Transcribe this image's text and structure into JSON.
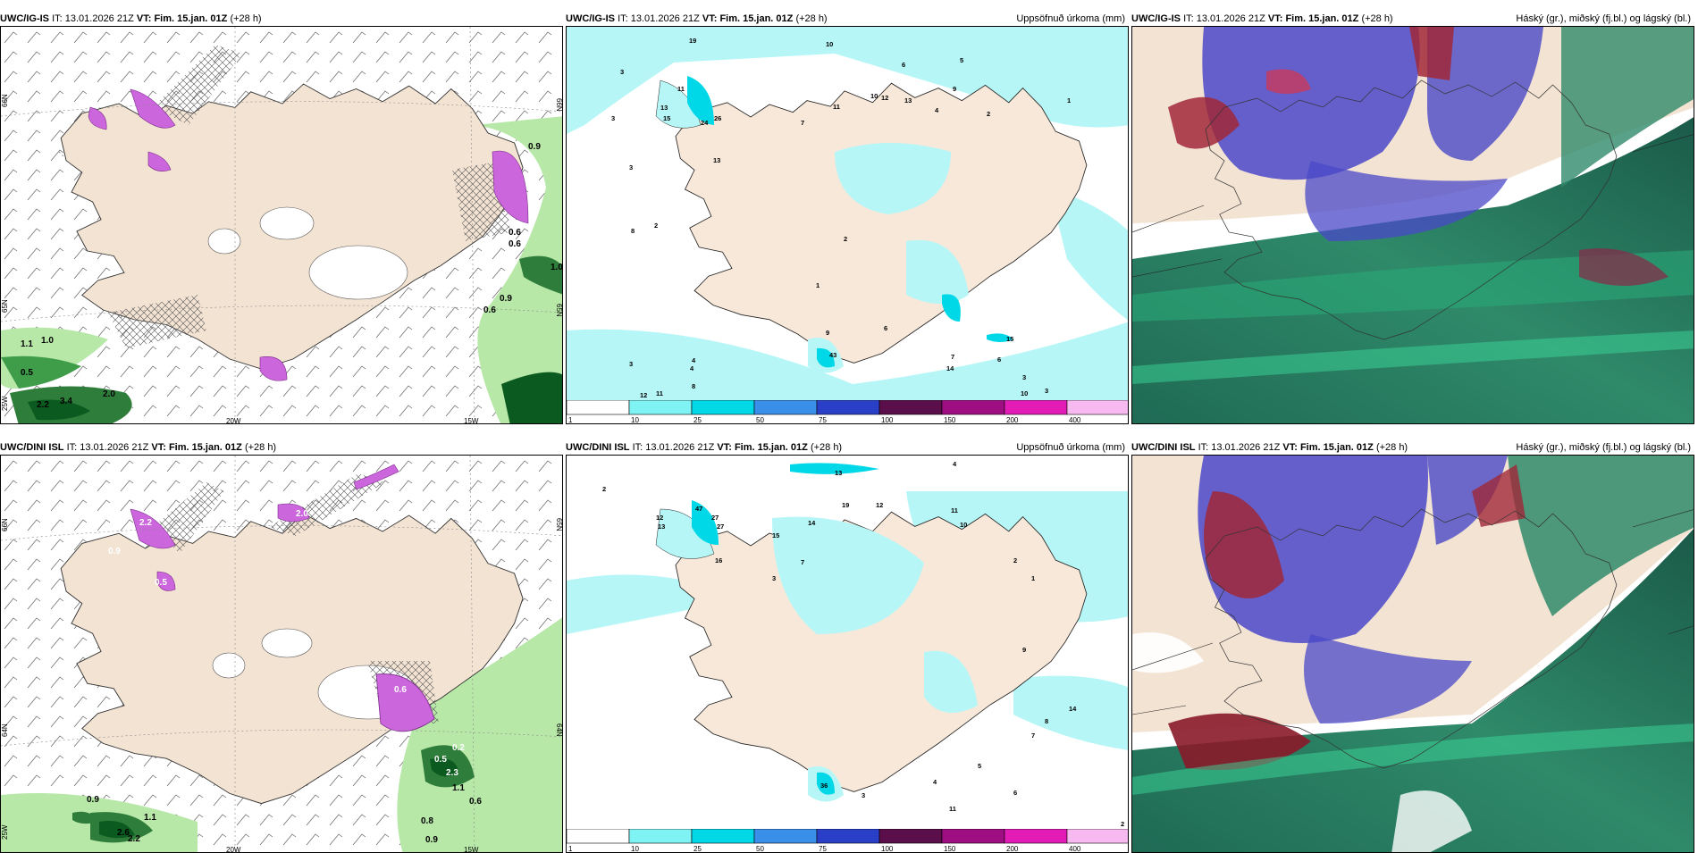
{
  "panels": [
    {
      "id": "tl",
      "model": "UWC/IG-IS",
      "it_label": "IT:",
      "it_value": "13.01.2026 21Z",
      "vt_label": "VT:",
      "vt_value": "Fim. 15.jan. 01Z",
      "lead": "(+28 h)",
      "title": "",
      "axis_labels": [
        "66N",
        "65N",
        "64N",
        "25W",
        "20W",
        "15W",
        "66N",
        "65N"
      ],
      "values": [
        "0.9",
        "0.6",
        "0.6",
        "0.9",
        "0.6",
        "1.0",
        "1.0",
        "0.5",
        "3.4",
        "2.2",
        "2.0",
        "1.1"
      ]
    },
    {
      "id": "tm",
      "model": "UWC/IG-IS",
      "it_label": "IT:",
      "it_value": "13.01.2026 21Z",
      "vt_label": "VT:",
      "vt_value": "Fim. 15.jan. 01Z",
      "lead": "(+28 h)",
      "title": "Uppsöfnuð úrkoma (mm)",
      "values": [
        "10",
        "6",
        "5",
        "3",
        "19",
        "11",
        "13",
        "15",
        "24",
        "26",
        "13",
        "3",
        "7",
        "11",
        "10",
        "12",
        "13",
        "9",
        "4",
        "2",
        "1",
        "8",
        "2",
        "3",
        "2",
        "1",
        "3",
        "4",
        "43",
        "9",
        "6",
        "7",
        "14",
        "15",
        "6",
        "12",
        "11",
        "10",
        "3",
        "8",
        "4",
        "3"
      ]
    },
    {
      "id": "tr",
      "model": "UWC/IG-IS",
      "it_label": "IT:",
      "it_value": "13.01.2026 21Z",
      "vt_label": "VT:",
      "vt_value": "Fim. 15.jan. 01Z",
      "lead": "(+28 h)",
      "title": "Háský (gr.), miðský (fj.bl.) og lágský (bl.)"
    },
    {
      "id": "bl",
      "model": "UWC/DINI ISL",
      "it_label": "IT:",
      "it_value": "13.01.2026 21Z",
      "vt_label": "VT:",
      "vt_value": "Fim. 15.jan. 01Z",
      "lead": "(+28 h)",
      "title": "",
      "axis_labels": [
        "66N",
        "65N",
        "64N",
        "25W",
        "20W",
        "15W",
        "65N",
        "64N"
      ],
      "values": [
        "2.2",
        "2.0",
        "0.9",
        "0.5",
        "0.6",
        "0.5",
        "0.2",
        "2.3",
        "1.1",
        "0.6",
        "0.8",
        "0.9",
        "0.9",
        "1.1",
        "2.6",
        "2.2"
      ]
    },
    {
      "id": "bm",
      "model": "UWC/DINI ISL",
      "it_label": "IT:",
      "it_value": "13.01.2026 21Z",
      "vt_label": "VT:",
      "vt_value": "Fim. 15.jan. 01Z",
      "lead": "(+28 h)",
      "title": "Uppsöfnuð úrkoma (mm)",
      "values": [
        "13",
        "2",
        "4",
        "12",
        "13",
        "47",
        "27",
        "27",
        "16",
        "15",
        "14",
        "19",
        "12",
        "11",
        "10",
        "7",
        "3",
        "2",
        "1",
        "9",
        "36",
        "14",
        "8",
        "7",
        "5",
        "6",
        "4",
        "3",
        "11",
        "2"
      ]
    },
    {
      "id": "br",
      "model": "UWC/DINI ISL",
      "it_label": "IT:",
      "it_value": "13.01.2026 21Z",
      "vt_label": "VT:",
      "vt_value": "Fim. 15.jan. 01Z",
      "lead": "(+28 h)",
      "title": "Háský (gr.), miðský (fj.bl.) og lágský (bl.)"
    }
  ],
  "colorbar": {
    "ticks": [
      "1",
      "10",
      "25",
      "50",
      "75",
      "100",
      "150",
      "200",
      "400"
    ],
    "colors": [
      "#ffffff",
      "#7ff3f3",
      "#00d8e8",
      "#3a8fe8",
      "#2a3fc8",
      "#5a0e4a",
      "#9e0d82",
      "#e31cb8",
      "#f8b8f0"
    ]
  },
  "colors": {
    "land": "#f3e3d3",
    "precip_light": "#b6f6f6",
    "precip_mid": "#00d8e8",
    "snow_purple": "#cc66dd",
    "wind_green_light": "#b7e8a8",
    "wind_green_dark": "#0b5a1f",
    "cloud_high": "#21735a",
    "cloud_mid": "#4a48c8",
    "cloud_low": "#a02838"
  }
}
